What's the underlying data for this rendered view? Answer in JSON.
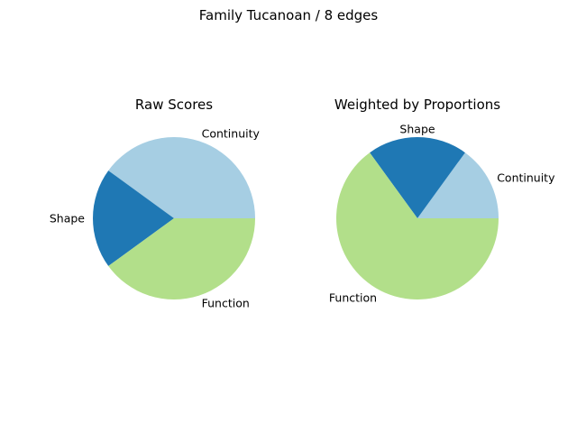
{
  "figure": {
    "suptitle": "Family Tucanoan / 8 edges"
  },
  "chart_data": [
    {
      "type": "pie",
      "title": "Raw Scores",
      "labels": [
        "Continuity",
        "Shape",
        "Function"
      ],
      "values": [
        0.4,
        0.2,
        0.4
      ],
      "colors": [
        "#a6cee3",
        "#1f78b4",
        "#b2df8a"
      ],
      "start_angle": 0,
      "direction": "counterclockwise"
    },
    {
      "type": "pie",
      "title": "Weighted by Proportions",
      "labels": [
        "Continuity",
        "Shape",
        "Function"
      ],
      "values": [
        0.15,
        0.2,
        0.65
      ],
      "colors": [
        "#a6cee3",
        "#1f78b4",
        "#b2df8a"
      ],
      "start_angle": 0,
      "direction": "counterclockwise"
    }
  ]
}
